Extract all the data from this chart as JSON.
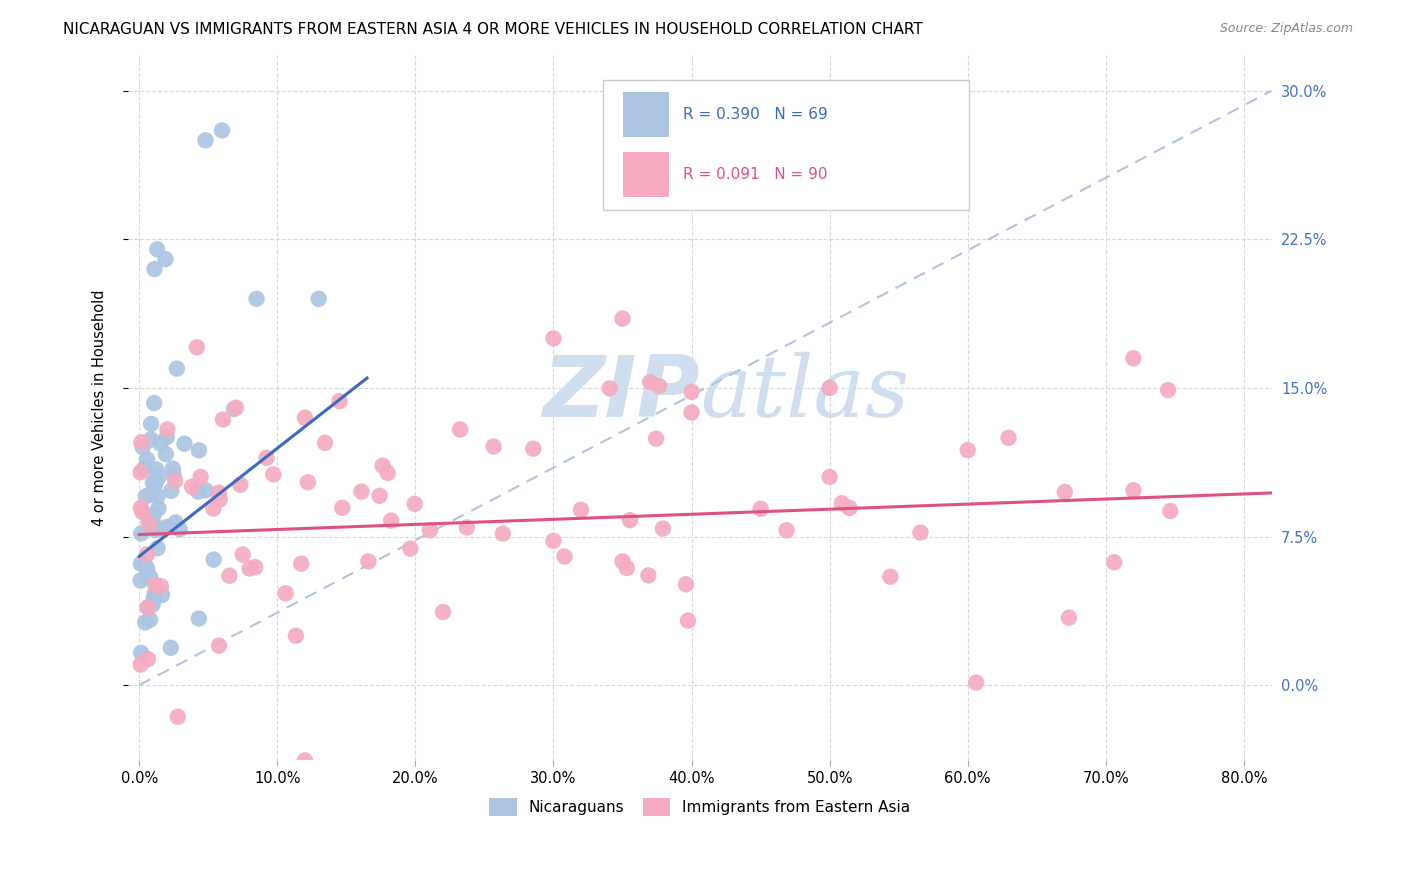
{
  "title": "NICARAGUAN VS IMMIGRANTS FROM EASTERN ASIA 4 OR MORE VEHICLES IN HOUSEHOLD CORRELATION CHART",
  "source": "Source: ZipAtlas.com",
  "ylabel": "4 or more Vehicles in Household",
  "legend_blue_label": "Nicaraguans",
  "legend_pink_label": "Immigrants from Eastern Asia",
  "R_blue": 0.39,
  "N_blue": 69,
  "R_pink": 0.091,
  "N_pink": 90,
  "blue_scatter_color": "#aac4e2",
  "pink_scatter_color": "#f5aabf",
  "blue_line_color": "#3a6bbf",
  "pink_line_color": "#e05080",
  "diag_line_color": "#b0c4de",
  "watermark_color": "#d0dff0",
  "right_tick_color": "#4472c4",
  "background_color": "#ffffff",
  "grid_color": "#d8d8d8",
  "xlim": [
    -0.008,
    0.82
  ],
  "ylim": [
    -0.038,
    0.318
  ],
  "xlabel_vals": [
    0.0,
    0.1,
    0.2,
    0.3,
    0.4,
    0.5,
    0.6,
    0.7,
    0.8
  ],
  "xlabel_ticks": [
    "0.0%",
    "10.0%",
    "20.0%",
    "30.0%",
    "40.0%",
    "50.0%",
    "60.0%",
    "70.0%",
    "80.0%"
  ],
  "ylabel_vals": [
    0.0,
    0.075,
    0.15,
    0.225,
    0.3
  ],
  "ylabel_ticks": [
    "0.0%",
    "7.5%",
    "15.0%",
    "22.5%",
    "30.0%"
  ],
  "blue_line_x": [
    0.0,
    0.165
  ],
  "blue_line_y": [
    0.065,
    0.155
  ],
  "pink_line_x": [
    0.0,
    0.82
  ],
  "pink_line_y": [
    0.076,
    0.097
  ],
  "diag_line_x": [
    0.0,
    0.82
  ],
  "diag_line_y": [
    0.0,
    0.3
  ]
}
